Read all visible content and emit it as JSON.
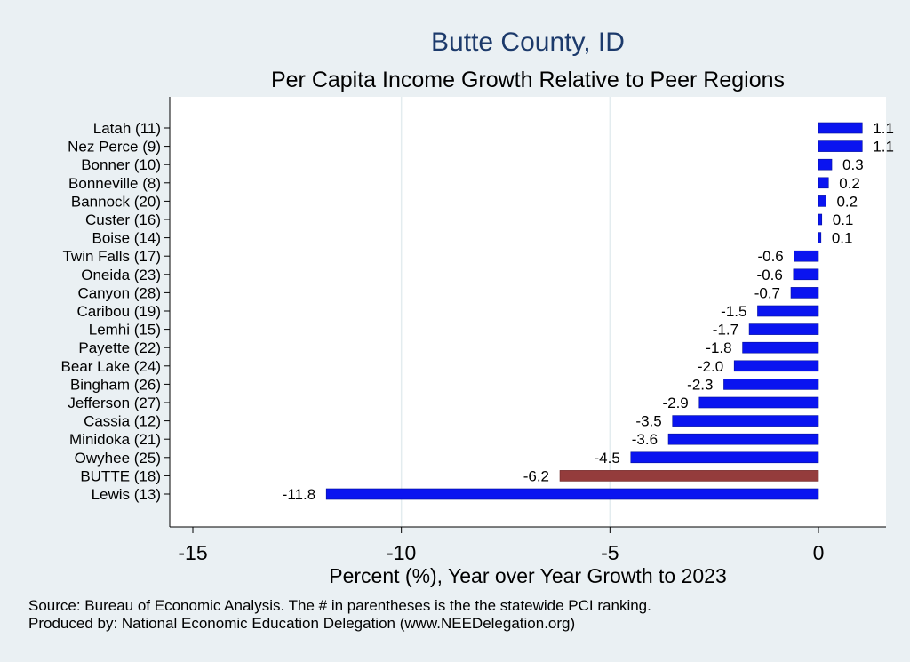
{
  "chart_data": {
    "type": "bar",
    "orientation": "horizontal",
    "title": "Butte County, ID",
    "subtitle": "Per Capita Income Growth Relative to Peer Regions",
    "xlabel": "Percent (%), Year over Year Growth to 2023",
    "xlim": [
      -16,
      1.6
    ],
    "xticks": [
      "-15",
      "-10",
      "-5",
      "0"
    ],
    "xtick_values": [
      -15,
      -10,
      -5,
      0
    ],
    "categories": [
      "Latah (11)",
      "Nez Perce  (9)",
      "Bonner (10)",
      "Bonneville  (8)",
      "Bannock (20)",
      "Custer (16)",
      "Boise (14)",
      "Twin Falls (17)",
      "Oneida (23)",
      "Canyon (28)",
      "Caribou (19)",
      "Lemhi (15)",
      "Payette (22)",
      "Bear Lake (24)",
      "Bingham (26)",
      "Jefferson (27)",
      "Cassia (12)",
      "Minidoka (21)",
      "Owyhee (25)",
      "BUTTE (18)",
      "Lewis (13)"
    ],
    "values": [
      1.05,
      1.05,
      0.32,
      0.24,
      0.18,
      0.08,
      0.06,
      -0.58,
      -0.6,
      -0.66,
      -1.46,
      -1.66,
      -1.82,
      -2.02,
      -2.27,
      -2.86,
      -3.5,
      -3.6,
      -4.5,
      -6.2,
      -11.8
    ],
    "value_labels": [
      "1.1",
      "1.1",
      "0.3",
      "0.2",
      "0.2",
      "0.1",
      "0.1",
      "-0.6",
      "-0.6",
      "-0.7",
      "-1.5",
      "-1.7",
      "-1.8",
      "-2.0",
      "-2.3",
      "-2.9",
      "-3.5",
      "-3.6",
      "-4.5",
      "-6.2",
      "-11.8"
    ],
    "highlight": "BUTTE (18)",
    "colors": {
      "bar": "#0a14f0",
      "highlight": "#943c3c",
      "background": "#eaf0f3",
      "plot": "#ffffff",
      "grid": "#e3ecef",
      "title": "#1c3a6b"
    }
  },
  "footer": {
    "source": "Source: Bureau of Economic Analysis. The # in parentheses is the the statewide PCI ranking.",
    "produced": "Produced by: National Economic Education Delegation (www.NEEDelegation.org)"
  }
}
